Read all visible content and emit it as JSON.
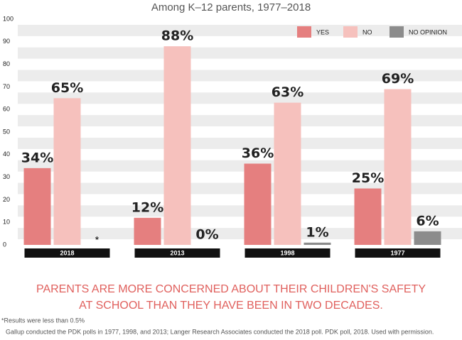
{
  "chart_data": {
    "type": "bar",
    "title": "Among K–12 parents, 1977–2018",
    "categories": [
      "2018",
      "2013",
      "1998",
      "1977"
    ],
    "series": [
      {
        "name": "YES",
        "color": "#e57f7f",
        "values": [
          34,
          12,
          36,
          25
        ],
        "value_labels": [
          "34%",
          "12%",
          "36%",
          "25%"
        ]
      },
      {
        "name": "NO",
        "color": "#f6c1bd",
        "values": [
          65,
          88,
          63,
          69
        ],
        "value_labels": [
          "65%",
          "88%",
          "63%",
          "69%"
        ]
      },
      {
        "name": "NO OPINION",
        "color": "#8c8c8c",
        "values": [
          null,
          0,
          1,
          6
        ],
        "value_labels": [
          "*",
          "0%",
          "1%",
          "6%"
        ]
      }
    ],
    "ylim": [
      0,
      100
    ],
    "yticks": [
      0,
      10,
      20,
      30,
      40,
      50,
      60,
      70,
      80,
      90,
      100
    ],
    "grid": true,
    "legend": "top-right",
    "caption": [
      "PARENTS ARE MORE CONCERNED ABOUT THEIR CHILDREN'S SAFETY",
      "AT SCHOOL THAN THEY HAVE BEEN IN TWO DECADES."
    ],
    "footnotes": [
      "*Results were less than 0.5%",
      "Gallup conducted the PDK polls in 1977, 1998, and 2013; Langer Research Associates conducted the 2018 poll. PDK poll, 2018. Used with permission."
    ]
  }
}
